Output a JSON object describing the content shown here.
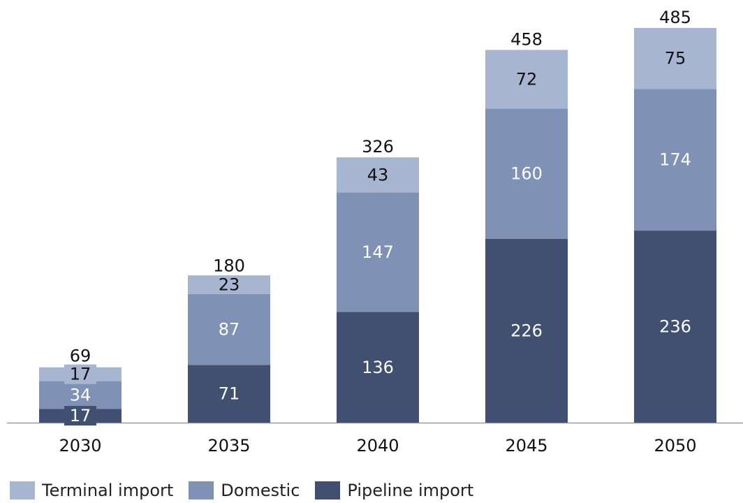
{
  "chart_data": {
    "type": "bar",
    "stacked": true,
    "categories": [
      "2030",
      "2035",
      "2040",
      "2045",
      "2050"
    ],
    "series": [
      {
        "name": "Pipeline import",
        "values": [
          17,
          71,
          136,
          226,
          236
        ],
        "color": "#414f70",
        "label_color": "#ffffff"
      },
      {
        "name": "Domestic",
        "values": [
          34,
          87,
          147,
          160,
          174
        ],
        "color": "#7f91b5",
        "label_color": "#ffffff"
      },
      {
        "name": "Terminal import",
        "values": [
          17,
          23,
          43,
          72,
          75
        ],
        "color": "#a8b5d0",
        "label_color": "#111111"
      }
    ],
    "totals": [
      69,
      180,
      326,
      458,
      485
    ],
    "ylim": [
      0,
      485
    ],
    "grid": false,
    "legend_position": "bottom",
    "legend_order": [
      "Terminal import",
      "Domestic",
      "Pipeline import"
    ],
    "title": "",
    "xlabel": "",
    "ylabel": ""
  }
}
